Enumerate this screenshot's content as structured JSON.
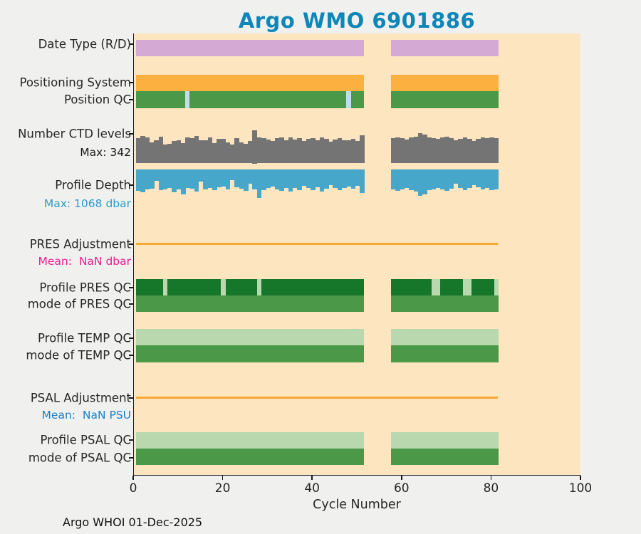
{
  "title": "Argo WMO 6901886",
  "title_color": "#0e86b7",
  "footer": "Argo WHOI 01-Dec-2025",
  "colors": {
    "page_bg": "#f0f0ef",
    "plot_bg": "#fce5bf",
    "axis": "#1a1a1a",
    "purple": "#d4aad4",
    "orange": "#fcb040",
    "green": "#4a9848",
    "dark_green": "#16772a",
    "pale_green": "#b9d8ae",
    "pale_blue": "#c3dcec",
    "gray": "#747474",
    "steel_blue": "#47a7ca",
    "orange_line": "#f7a733",
    "magenta_text": "#ea1f90",
    "blue_text": "#1b80c8",
    "teal_text": "#2d9cc7"
  },
  "chart_data": {
    "type": "multi-band status timeline (bar/heatmap hybrid)",
    "title": "Argo WMO 6901886",
    "xlabel": "Cycle Number",
    "xlim": [
      0,
      100
    ],
    "xticks": [
      0,
      20,
      40,
      60,
      80,
      100
    ],
    "grid": false,
    "cycle_segments": [
      {
        "start": 1,
        "end": 51
      },
      {
        "start": 58,
        "end": 81
      }
    ],
    "missing_cycles": "52-57",
    "bands": [
      {
        "id": "date_type",
        "label": "Date Type (R/D)",
        "type": "solid",
        "color": "#d4aad4"
      },
      {
        "id": "positioning_system",
        "label": "Positioning System",
        "type": "solid",
        "color": "#fcb040"
      },
      {
        "id": "position_qc",
        "label": "Position QC",
        "type": "solid",
        "color": "#4a9848",
        "breaks": {
          "color": "#c3dcec",
          "cycles": [
            12,
            48
          ]
        }
      },
      {
        "id": "ctd_levels",
        "label": "Number CTD levels",
        "sublabel": "Max: 342",
        "sublabel_color": "#1a1a1a",
        "type": "hist_up",
        "color": "#747474",
        "max_value": 342,
        "values_seg1": [
          255,
          277,
          262,
          218,
          240,
          270,
          195,
          198,
          226,
          240,
          205,
          262,
          260,
          277,
          233,
          235,
          262,
          204,
          248,
          248,
          218,
          195,
          255,
          218,
          200,
          226,
          342,
          265,
          258,
          246,
          232,
          255,
          262,
          238,
          268,
          242,
          258,
          230,
          250,
          260,
          236,
          268,
          252,
          222,
          246,
          258,
          240,
          234,
          248,
          228,
          288
        ],
        "values_seg2": [
          255,
          268,
          260,
          246,
          262,
          272,
          310,
          298,
          265,
          258,
          250,
          262,
          270,
          255,
          240,
          252,
          265,
          248,
          228,
          250,
          262,
          255,
          268,
          258
        ]
      },
      {
        "id": "profile_depth",
        "label": "Profile Depth",
        "sublabel": "Max: 1068 dbar",
        "sublabel_color": "#2d9cc7",
        "type": "hist_down",
        "color": "#47a7ca",
        "max_value": 1068,
        "values_seg1": [
          810,
          880,
          760,
          730,
          430,
          800,
          760,
          700,
          880,
          760,
          940,
          700,
          730,
          840,
          460,
          760,
          720,
          800,
          680,
          650,
          760,
          420,
          680,
          730,
          820,
          560,
          760,
          1068,
          800,
          720,
          650,
          760,
          810,
          700,
          850,
          710,
          780,
          640,
          720,
          790,
          680,
          830,
          740,
          600,
          720,
          780,
          700,
          660,
          730,
          640,
          890
        ],
        "values_seg2": [
          750,
          820,
          770,
          700,
          790,
          840,
          1010,
          950,
          780,
          750,
          710,
          760,
          810,
          740,
          560,
          710,
          790,
          700,
          600,
          690,
          760,
          720,
          800,
          750
        ]
      },
      {
        "id": "pres_adjustment",
        "label": "PRES Adjustment",
        "sublabel": "Mean:  NaN dbar",
        "sublabel_color": "#ea1f90",
        "type": "line",
        "color": "#f7a733",
        "line_span_cycles": [
          0.5,
          81.3
        ]
      },
      {
        "id": "profile_pres_qc",
        "label": "Profile PRES QC",
        "type": "solid",
        "color": "#16772a",
        "breaks": {
          "color": "#b9d8ae",
          "cycles": [
            7,
            20,
            28,
            67,
            68,
            74,
            75,
            81
          ]
        }
      },
      {
        "id": "mode_pres_qc",
        "label": "mode of PRES QC",
        "type": "solid",
        "color": "#4a9848"
      },
      {
        "id": "profile_temp_qc",
        "label": "Profile TEMP QC",
        "type": "solid",
        "color": "#b9d8ae"
      },
      {
        "id": "mode_temp_qc",
        "label": "mode of TEMP QC",
        "type": "solid",
        "color": "#4a9848"
      },
      {
        "id": "psal_adjustment",
        "label": "PSAL Adjustment",
        "sublabel": "Mean:  NaN PSU",
        "sublabel_color": "#1b80c8",
        "type": "line",
        "color": "#f7a733",
        "line_span_cycles": [
          0.5,
          81.3
        ]
      },
      {
        "id": "profile_psal_qc",
        "label": "Profile PSAL QC",
        "type": "solid",
        "color": "#b9d8ae"
      },
      {
        "id": "mode_psal_qc",
        "label": "mode of PSAL QC",
        "type": "solid",
        "color": "#4a9848"
      }
    ]
  }
}
